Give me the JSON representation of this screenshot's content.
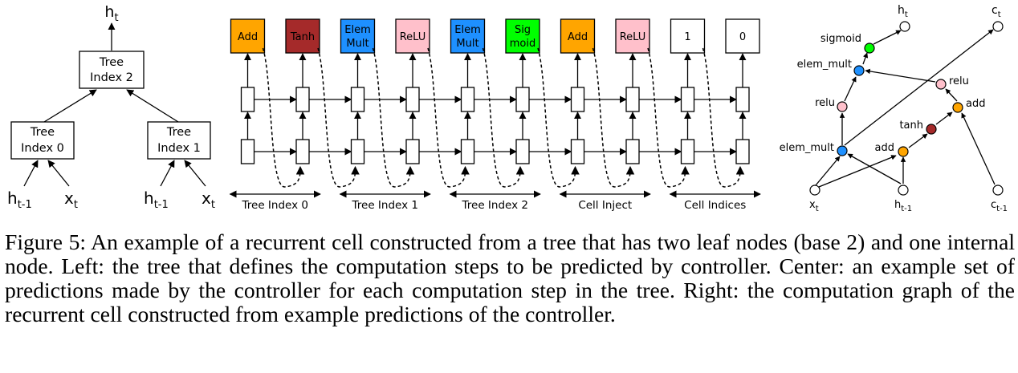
{
  "tree": {
    "root": "Tree Index 2",
    "left": "Tree Index 0",
    "right": "Tree Index 1",
    "output": "h",
    "output_sub": "t",
    "leaves": [
      {
        "label": "h",
        "sub": "t-1"
      },
      {
        "label": "x",
        "sub": "t"
      },
      {
        "label": "h",
        "sub": "t-1"
      },
      {
        "label": "x",
        "sub": "t"
      }
    ]
  },
  "controller": {
    "predictions": [
      {
        "text": "Add",
        "color": "#ffa500"
      },
      {
        "text": "Tanh",
        "color": "#a52a2a"
      },
      {
        "text": "Elem Mult",
        "color": "#1e90ff"
      },
      {
        "text": "ReLU",
        "color": "#ffc0cb"
      },
      {
        "text": "Elem Mult",
        "color": "#1e90ff"
      },
      {
        "text": "Sig moid",
        "color": "#00ff00"
      },
      {
        "text": "Add",
        "color": "#ffa500"
      },
      {
        "text": "ReLU",
        "color": "#ffc0cb"
      },
      {
        "text": "1",
        "color": "#ffffff"
      },
      {
        "text": "0",
        "color": "#ffffff"
      }
    ],
    "groups": [
      "Tree Index 0",
      "Tree Index 1",
      "Tree Index 2",
      "Cell Inject",
      "Cell Indices"
    ]
  },
  "graph": {
    "nodes": [
      {
        "id": "ht",
        "label": "h",
        "sub": "t",
        "color": "#ffffff"
      },
      {
        "id": "ct",
        "label": "c",
        "sub": "t",
        "color": "#ffffff"
      },
      {
        "id": "sigmoid",
        "label": "sigmoid",
        "color": "#00ff00"
      },
      {
        "id": "elem_mult_top",
        "label": "elem_mult",
        "color": "#1e90ff"
      },
      {
        "id": "relu_right",
        "label": "relu",
        "color": "#ffc0cb"
      },
      {
        "id": "relu_left",
        "label": "relu",
        "color": "#ffc0cb"
      },
      {
        "id": "add_right",
        "label": "add",
        "color": "#ffa500"
      },
      {
        "id": "tanh",
        "label": "tanh",
        "color": "#a52a2a"
      },
      {
        "id": "elem_mult_bottom",
        "label": "elem_mult",
        "color": "#1e90ff"
      },
      {
        "id": "add_bottom",
        "label": "add",
        "color": "#ffa500"
      },
      {
        "id": "xt",
        "label": "x",
        "sub": "t",
        "color": "#ffffff"
      },
      {
        "id": "ht1",
        "label": "h",
        "sub": "t-1",
        "color": "#ffffff"
      },
      {
        "id": "ct1",
        "label": "c",
        "sub": "t-1",
        "color": "#ffffff"
      }
    ]
  },
  "caption": "Figure 5: An example of a recurrent cell constructed from a tree that has two leaf nodes (base 2) and one internal node. Left: the tree that defines the computation steps to be predicted by controller. Center: an example set of predictions made by the controller for each computation step in the tree. Right: the computation graph of the recurrent cell constructed from example predictions of the controller."
}
